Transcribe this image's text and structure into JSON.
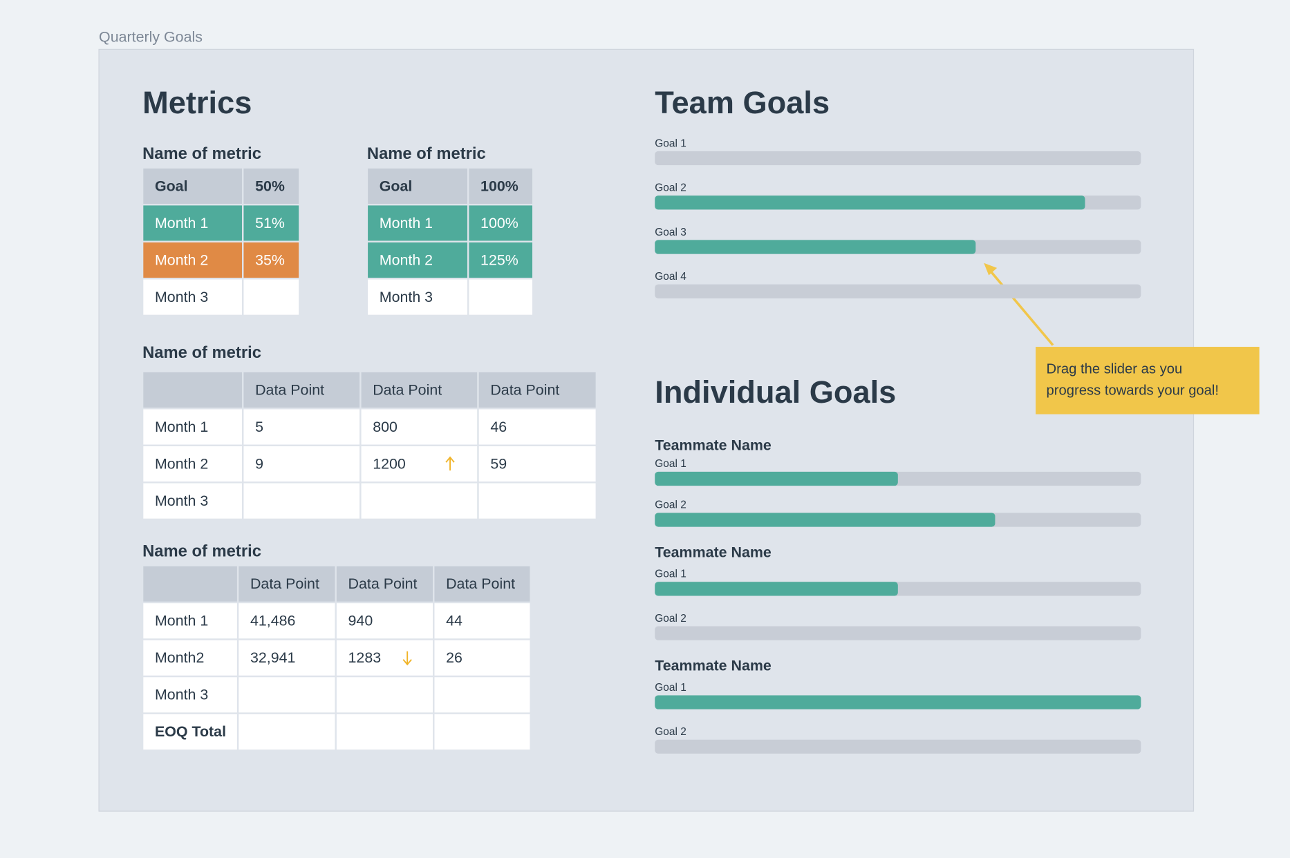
{
  "header": {
    "title": "Quarterly Goals"
  },
  "metrics": {
    "heading": "Metrics",
    "tables": [
      {
        "title": "Name of metric",
        "rows": [
          [
            "Goal",
            "50%"
          ],
          [
            "Month 1",
            "51%"
          ],
          [
            "Month 2",
            "35%"
          ],
          [
            "Month 3",
            null
          ]
        ]
      },
      {
        "title": "Name of metric",
        "rows": [
          [
            "Goal",
            "100%"
          ],
          [
            "Month 1",
            "100%"
          ],
          [
            "Month 2",
            "125%"
          ],
          [
            "Month 3",
            null
          ]
        ]
      },
      {
        "title": "Name of metric",
        "rows": [
          [
            null,
            "Data Point",
            "Data Point",
            "Data Point"
          ],
          [
            "Month 1",
            "5",
            "800",
            "46"
          ],
          [
            "Month 2",
            "9",
            "1200",
            "59"
          ],
          [
            "Month 3",
            null,
            null,
            null
          ]
        ]
      },
      {
        "title": "Name of metric",
        "rows": [
          [
            null,
            "Data Point",
            "Data Point",
            "Data Point"
          ],
          [
            "Month 1",
            "41,486",
            "940",
            "44"
          ],
          [
            "Month2",
            "32,941",
            "1283",
            "26"
          ],
          [
            "Month 3",
            null,
            null,
            null
          ],
          [
            "EOQ Total",
            null,
            null,
            null
          ]
        ]
      }
    ]
  },
  "team_goals": {
    "heading": "Team Goals",
    "goals": [
      {
        "label": "Goal 1",
        "progress": 0
      },
      {
        "label": "Goal 2",
        "progress": 88.5
      },
      {
        "label": "Goal 3",
        "progress": 66
      },
      {
        "label": "Goal 4",
        "progress": 0
      }
    ]
  },
  "individual_goals": {
    "heading": "Individual Goals",
    "teammates": [
      {
        "name": "Teammate Name",
        "goals": [
          {
            "label": "Goal 1",
            "progress": 50
          },
          {
            "label": "Goal 2",
            "progress": 70
          }
        ]
      },
      {
        "name": "Teammate Name",
        "goals": [
          {
            "label": "Goal 1",
            "progress": 50
          },
          {
            "label": "Goal 2",
            "progress": 0
          }
        ]
      },
      {
        "name": "Teammate Name",
        "goals": [
          {
            "label": "Goal 1",
            "progress": 100
          },
          {
            "label": "Goal 2",
            "progress": 0
          }
        ]
      }
    ]
  },
  "callout": {
    "lines": [
      "Drag the slider as you",
      "progress towards your goal!"
    ]
  }
}
